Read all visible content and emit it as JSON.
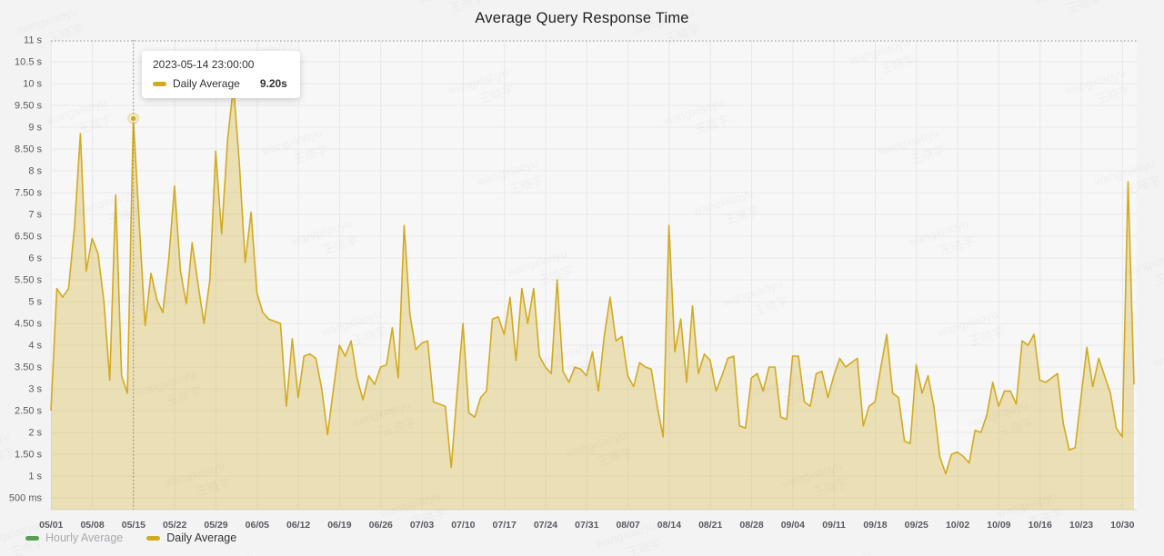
{
  "title": "Average Query Response Time",
  "watermark": {
    "line1": "wangxiaoyu",
    "line2": "王晓宇"
  },
  "colors": {
    "page_bg": "#f3f3f4",
    "plot_bg": "#f7f7f8",
    "grid": "#e8e8ea",
    "axis_line": "#dcdcde",
    "tick_text": "#5a5a5e",
    "crosshair": "#8a8a8a",
    "daily_line": "#d2aa1e",
    "hourly_line": "#55a055"
  },
  "tooltip": {
    "timestamp": "2023-05-14 23:00:00",
    "series": "Daily Average",
    "value": "9.20s"
  },
  "legend": [
    {
      "label": "Hourly Average",
      "color": "#55a055",
      "active": false
    },
    {
      "label": "Daily Average",
      "color": "#d2aa1e",
      "active": true
    }
  ],
  "y_axis": {
    "labels": [
      "11 s",
      "10.5 s",
      "10 s",
      "9.50 s",
      "9 s",
      "8.50 s",
      "8 s",
      "7.50 s",
      "7 s",
      "6.50 s",
      "6 s",
      "5.50 s",
      "5 s",
      "4.50 s",
      "4 s",
      "3.50 s",
      "3 s",
      "2.50 s",
      "2 s",
      "1.50 s",
      "1 s",
      "500 ms"
    ],
    "top_value_s": 11,
    "step_s": 0.5,
    "bottom_label_value_s": 0.5
  },
  "x_axis": {
    "labels": [
      "05/01",
      "05/08",
      "05/15",
      "05/22",
      "05/29",
      "06/05",
      "06/12",
      "06/19",
      "06/26",
      "07/03",
      "07/10",
      "07/17",
      "07/24",
      "07/31",
      "08/07",
      "08/14",
      "08/21",
      "08/28",
      "09/04",
      "09/11",
      "09/18",
      "09/25",
      "10/02",
      "10/09",
      "10/16",
      "10/23",
      "10/30"
    ]
  },
  "chart_data": {
    "type": "area",
    "series": [
      {
        "name": "Daily Average",
        "unit": "s",
        "cadence": "daily",
        "point_time_of_day": "23:00"
      }
    ],
    "legend_position": "bottom-left",
    "grid_on": true,
    "ylim_s": [
      0.23,
      11
    ],
    "x_start_date": "2023-04-30",
    "x_end_date": "2023-10-31",
    "segments": [
      {
        "month": "2023-04",
        "values": [
          2.5
        ]
      },
      {
        "month": "2023-05",
        "values": [
          5.3,
          5.1,
          5.3,
          6.7,
          8.85,
          5.7,
          6.45,
          6.1,
          5.0,
          3.2,
          7.45,
          3.3,
          2.9,
          9.2,
          6.8,
          4.45,
          5.65,
          5.05,
          4.75,
          5.95,
          7.65,
          5.7,
          4.95,
          6.35,
          5.4,
          4.5,
          5.5,
          8.45,
          6.55,
          8.7,
          9.95
        ]
      },
      {
        "month": "2023-06",
        "values": [
          8.2,
          5.9,
          7.05,
          5.2,
          4.75,
          4.6,
          4.55,
          4.5,
          2.6,
          4.15,
          2.8,
          3.75,
          3.8,
          3.7,
          3.0,
          1.95,
          3.0,
          4.0,
          3.75,
          4.1,
          3.25,
          2.75,
          3.3,
          3.1,
          3.5,
          3.55,
          4.4,
          3.25,
          6.75,
          4.7
        ]
      },
      {
        "month": "2023-07",
        "values": [
          3.9,
          4.05,
          4.1,
          2.7,
          2.65,
          2.6,
          1.2,
          2.9,
          4.5,
          2.45,
          2.35,
          2.8,
          2.95,
          4.6,
          4.65,
          4.25,
          5.1,
          3.65,
          5.3,
          4.5,
          5.3,
          3.75,
          3.5,
          3.35,
          5.5,
          3.4,
          3.15,
          3.5,
          3.45,
          3.3,
          3.85
        ]
      },
      {
        "month": "2023-08",
        "values": [
          2.95,
          4.2,
          5.1,
          4.1,
          4.2,
          3.3,
          3.05,
          3.6,
          3.5,
          3.45,
          2.6,
          1.9,
          6.75,
          3.85,
          4.6,
          3.15,
          4.9,
          3.35,
          3.8,
          3.65,
          2.95,
          3.3,
          3.7,
          3.75,
          2.15,
          2.1,
          3.25,
          3.35,
          2.95,
          3.5,
          3.5
        ]
      },
      {
        "month": "2023-09",
        "values": [
          2.35,
          2.3,
          3.75,
          3.75,
          2.7,
          2.6,
          3.35,
          3.4,
          2.8,
          3.3,
          3.7,
          3.5,
          3.6,
          3.7,
          2.15,
          2.6,
          2.7,
          3.5,
          4.25,
          2.9,
          2.8,
          1.8,
          1.75,
          3.55,
          2.9,
          3.3,
          2.6,
          1.45,
          1.05,
          1.5
        ]
      },
      {
        "month": "2023-10",
        "values": [
          1.55,
          1.45,
          1.3,
          2.05,
          2.0,
          2.4,
          3.15,
          2.6,
          2.95,
          2.95,
          2.65,
          4.1,
          4.0,
          4.25,
          3.2,
          3.15,
          3.25,
          3.35,
          2.2,
          1.6,
          1.65,
          2.8,
          3.95,
          3.05,
          3.7,
          3.3,
          2.9,
          2.1,
          1.9,
          7.75,
          3.1
        ]
      }
    ],
    "highlight": {
      "date": "2023-05-14",
      "index": 14,
      "value_s": 9.2
    },
    "crosshair": {
      "x_date": "2023-05-14",
      "y_value_s": 11
    }
  }
}
